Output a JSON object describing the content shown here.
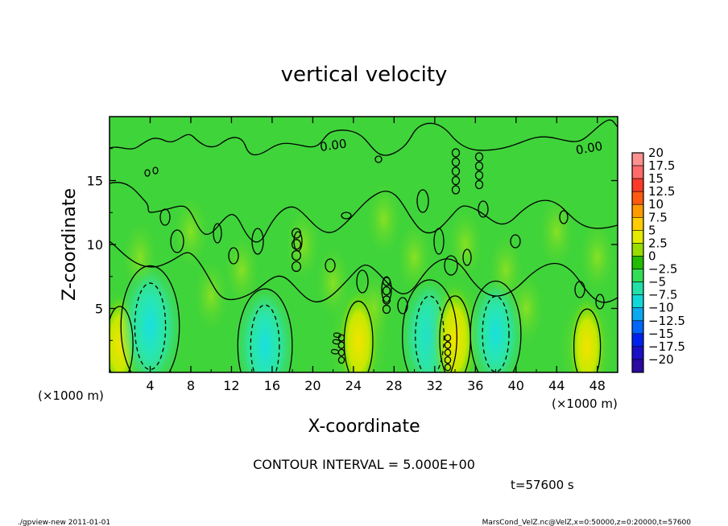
{
  "chart_data": {
    "type": "heatmap",
    "title": "vertical velocity",
    "xlabel": "X-coordinate",
    "ylabel": "Z-coordinate",
    "x_unit": "(×1000 m)",
    "y_unit": "(×1000 m)",
    "xlim": [
      0,
      50
    ],
    "ylim": [
      0,
      20
    ],
    "x_ticks": [
      4,
      8,
      12,
      16,
      20,
      24,
      28,
      32,
      36,
      40,
      44,
      48
    ],
    "y_ticks": [
      5,
      10,
      15
    ],
    "contour_interval_text": "CONTOUR INTERVAL = 5.000E+00",
    "contour_labels": [
      "0.00",
      "0.00",
      "0.00"
    ],
    "time_text": "t=57600 s",
    "colorbar": {
      "levels": [
        20,
        17.5,
        15,
        12.5,
        10,
        7.5,
        5,
        2.5,
        0,
        -2.5,
        -5,
        -7.5,
        -10,
        -12.5,
        -15,
        -17.5,
        -20
      ],
      "labels": [
        "20",
        "17.5",
        "15",
        "12.5",
        "10",
        "7.5",
        "5",
        "2.5",
        "0",
        "−2.5",
        "−5",
        "−7.5",
        "−10",
        "−12.5",
        "−15",
        "−17.5",
        "−20"
      ],
      "colors": [
        "#ff9090",
        "#ff6a6a",
        "#ff3a2a",
        "#ff5a10",
        "#ff9a00",
        "#ffcc00",
        "#e4ea00",
        "#99dd00",
        "#22bb00",
        "#33dd55",
        "#22e0a8",
        "#11d8d8",
        "#0aa8f0",
        "#0066ff",
        "#0022ee",
        "#1a10c8",
        "#2a0aa0",
        "#6a00c0"
      ]
    },
    "features": [
      {
        "kind": "updraft",
        "x": 1.0,
        "z": 2.2,
        "w": 5
      },
      {
        "kind": "downdraft",
        "x": 4.0,
        "z": 3.6,
        "w": -7
      },
      {
        "kind": "downdraft",
        "x": 15.3,
        "z": 2.1,
        "w": -6
      },
      {
        "kind": "updraft",
        "x": 24.5,
        "z": 2.4,
        "w": 6
      },
      {
        "kind": "downdraft",
        "x": 31.5,
        "z": 2.8,
        "w": -6
      },
      {
        "kind": "updraft",
        "x": 34.0,
        "z": 2.6,
        "w": 7
      },
      {
        "kind": "downdraft",
        "x": 38.0,
        "z": 3.0,
        "w": -5
      },
      {
        "kind": "updraft",
        "x": 47.0,
        "z": 2.0,
        "w": 5
      }
    ]
  },
  "footer": {
    "left": "./gpview-new  2011-01-01",
    "right": "MarsCond_VelZ.nc@VelZ,x=0:50000,z=0:20000,t=57600"
  }
}
